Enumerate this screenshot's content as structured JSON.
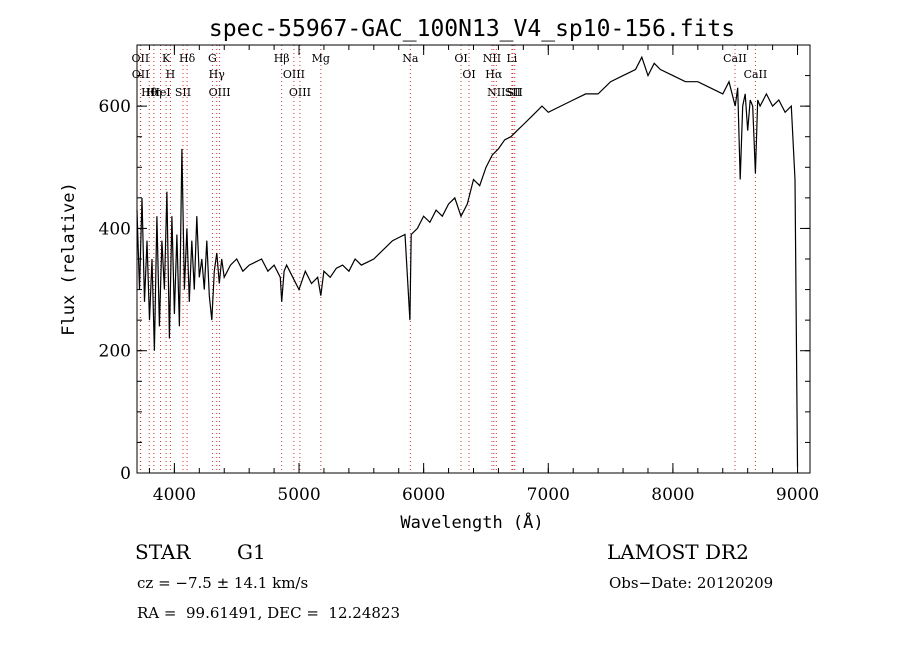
{
  "chart_data": {
    "type": "line",
    "title": "spec-55967-GAC_100N13_V4_sp10-156.fits",
    "xlabel": "Wavelength (Å)",
    "ylabel": "Flux (relative)",
    "xlim": [
      3700,
      9100
    ],
    "ylim": [
      0,
      700
    ],
    "x_ticks": [
      4000,
      5000,
      6000,
      7000,
      8000,
      9000
    ],
    "y_ticks": [
      0,
      200,
      400,
      600
    ],
    "grid": false,
    "series": [
      {
        "x": [
          3700,
          3720,
          3740,
          3760,
          3780,
          3800,
          3820,
          3840,
          3860,
          3880,
          3900,
          3920,
          3940,
          3960,
          3980,
          4000,
          4020,
          4040,
          4060,
          4080,
          4100,
          4120,
          4140,
          4160,
          4180,
          4200,
          4220,
          4240,
          4260,
          4280,
          4300,
          4320,
          4340,
          4360,
          4380,
          4400,
          4450,
          4500,
          4550,
          4600,
          4650,
          4700,
          4750,
          4800,
          4850,
          4861,
          4880,
          4900,
          4950,
          5000,
          5050,
          5100,
          5150,
          5175,
          5200,
          5250,
          5300,
          5350,
          5400,
          5450,
          5500,
          5550,
          5600,
          5650,
          5700,
          5750,
          5800,
          5850,
          5890,
          5900,
          5950,
          6000,
          6050,
          6100,
          6150,
          6200,
          6250,
          6300,
          6350,
          6400,
          6450,
          6500,
          6550,
          6600,
          6650,
          6700,
          6750,
          6800,
          6850,
          6900,
          6950,
          7000,
          7100,
          7200,
          7300,
          7400,
          7500,
          7600,
          7700,
          7750,
          7800,
          7850,
          7900,
          8000,
          8100,
          8200,
          8300,
          8400,
          8450,
          8500,
          8520,
          8540,
          8560,
          8580,
          8600,
          8620,
          8640,
          8662,
          8680,
          8700,
          8750,
          8800,
          8850,
          8900,
          8950,
          8980,
          9000
        ],
        "y": [
          430,
          300,
          450,
          280,
          380,
          250,
          350,
          200,
          420,
          240,
          380,
          300,
          460,
          220,
          420,
          260,
          390,
          240,
          530,
          300,
          400,
          280,
          380,
          300,
          420,
          320,
          350,
          300,
          380,
          290,
          250,
          330,
          360,
          310,
          350,
          320,
          340,
          350,
          330,
          340,
          345,
          350,
          330,
          340,
          320,
          280,
          330,
          340,
          320,
          300,
          330,
          310,
          320,
          290,
          330,
          320,
          335,
          340,
          330,
          350,
          340,
          345,
          350,
          360,
          370,
          380,
          385,
          390,
          250,
          390,
          400,
          420,
          410,
          430,
          420,
          440,
          450,
          420,
          440,
          480,
          470,
          500,
          520,
          530,
          545,
          550,
          560,
          570,
          580,
          590,
          600,
          590,
          600,
          610,
          620,
          620,
          640,
          650,
          660,
          680,
          650,
          670,
          660,
          650,
          640,
          640,
          630,
          620,
          640,
          600,
          630,
          480,
          600,
          620,
          560,
          610,
          600,
          490,
          610,
          600,
          620,
          600,
          610,
          590,
          600,
          480,
          10
        ]
      }
    ],
    "lines": [
      {
        "label": "Hθ",
        "x": 3798
      },
      {
        "label": "OII",
        "x": 3727
      },
      {
        "label": "OII",
        "x": 3729
      },
      {
        "label": "Hη",
        "x": 3835
      },
      {
        "label": "HeI",
        "x": 3889
      },
      {
        "label": "K",
        "x": 3934
      },
      {
        "label": "H",
        "x": 3968
      },
      {
        "label": "SII",
        "x": 4069
      },
      {
        "label": "Hδ",
        "x": 4102
      },
      {
        "label": "OIII",
        "x": 4363
      },
      {
        "label": "Hγ",
        "x": 4340
      },
      {
        "label": "G",
        "x": 4305
      },
      {
        "label": "Hβ",
        "x": 4861
      },
      {
        "label": "OIII",
        "x": 4959
      },
      {
        "label": "OIII",
        "x": 5007
      },
      {
        "label": "Mg",
        "x": 5175
      },
      {
        "label": "Na",
        "x": 5893
      },
      {
        "label": "OI",
        "x": 6300
      },
      {
        "label": "OI",
        "x": 6364
      },
      {
        "label": "NII",
        "x": 6548
      },
      {
        "label": "Hα",
        "x": 6563
      },
      {
        "label": "NII",
        "x": 6583
      },
      {
        "label": "Li",
        "x": 6708
      },
      {
        "label": "SII",
        "x": 6716
      },
      {
        "label": "SII",
        "x": 6731
      },
      {
        "label": "CaII",
        "x": 8498
      },
      {
        "label": "CaII",
        "x": 8662
      }
    ],
    "marker_color": "#d03030",
    "line_color": "#000000"
  },
  "info": {
    "object_type": "STAR",
    "subclass": "G1",
    "survey": "LAMOST DR2",
    "cz": "cz = −7.5 ± 14.1 km/s",
    "obs_date": "Obs−Date: 20120209",
    "coords": "RA =  99.61491, DEC =  12.24823"
  }
}
